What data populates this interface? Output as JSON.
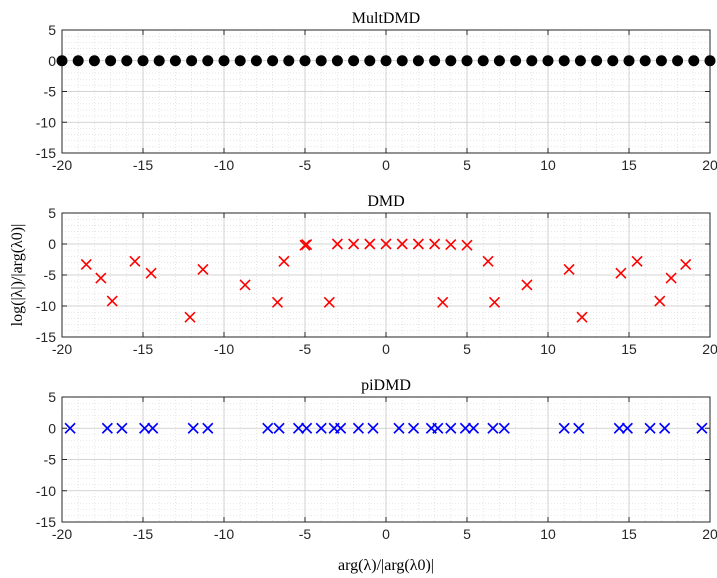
{
  "chart_data": [
    {
      "type": "scatter",
      "title": "MultDMD",
      "xlim": [
        -20,
        20
      ],
      "ylim": [
        -15,
        5
      ],
      "xticks": [
        -20,
        -15,
        -10,
        -5,
        0,
        5,
        10,
        15,
        20
      ],
      "yticks": [
        -15,
        -10,
        -5,
        0,
        5
      ],
      "grid": true,
      "minor_grid": true,
      "marker": "filled-circle",
      "color": "#000000",
      "x": [
        -20,
        -19,
        -18,
        -17,
        -16,
        -15,
        -14,
        -13,
        -12,
        -11,
        -10,
        -9,
        -8,
        -7,
        -6,
        -5,
        -4,
        -3,
        -2,
        -1,
        0,
        1,
        2,
        3,
        4,
        5,
        6,
        7,
        8,
        9,
        10,
        11,
        12,
        13,
        14,
        15,
        16,
        17,
        18,
        19,
        20
      ],
      "y": [
        0,
        0,
        0,
        0,
        0,
        0,
        0,
        0,
        0,
        0,
        0,
        0,
        0,
        0,
        0,
        0,
        0,
        0,
        0,
        0,
        0,
        0,
        0,
        0,
        0,
        0,
        0,
        0,
        0,
        0,
        0,
        0,
        0,
        0,
        0,
        0,
        0,
        0,
        0,
        0,
        0
      ]
    },
    {
      "type": "scatter",
      "title": "DMD",
      "ylabel": "log(|λ|)/|arg(λ0)|",
      "xlim": [
        -20,
        20
      ],
      "ylim": [
        -15,
        5
      ],
      "xticks": [
        -20,
        -15,
        -10,
        -5,
        0,
        5,
        10,
        15,
        20
      ],
      "yticks": [
        -15,
        -10,
        -5,
        0,
        5
      ],
      "grid": true,
      "minor_grid": true,
      "marker": "x",
      "color": "#ff0000",
      "x": [
        -18.5,
        -17.6,
        -16.9,
        -15.5,
        -14.5,
        -12.1,
        -11.3,
        -8.7,
        -6.7,
        -6.3,
        -5,
        -4.9,
        -3.5,
        -3,
        -2,
        -1,
        0,
        1,
        2,
        3,
        3.5,
        4,
        5,
        6.3,
        6.7,
        8.7,
        11.3,
        12.1,
        14.5,
        15.5,
        16.9,
        17.6,
        18.5
      ],
      "y": [
        -3.3,
        -5.5,
        -9.2,
        -2.8,
        -4.7,
        -11.8,
        -4.1,
        -6.6,
        -9.4,
        -2.8,
        -0.2,
        -0.1,
        -9.4,
        0,
        0,
        0,
        0,
        0,
        0,
        0,
        -9.4,
        -0.1,
        -0.2,
        -2.8,
        -9.4,
        -6.6,
        -4.1,
        -11.8,
        -4.7,
        -2.8,
        -9.2,
        -5.5,
        -3.3
      ]
    },
    {
      "type": "scatter",
      "title": "piDMD",
      "xlabel": "arg(λ)/|arg(λ0)|",
      "xlim": [
        -20,
        20
      ],
      "ylim": [
        -15,
        5
      ],
      "xticks": [
        -20,
        -15,
        -10,
        -5,
        0,
        5,
        10,
        15,
        20
      ],
      "yticks": [
        -15,
        -10,
        -5,
        0,
        5
      ],
      "grid": true,
      "minor_grid": true,
      "marker": "x",
      "color": "#0000ff",
      "x": [
        -19.5,
        -17.2,
        -16.3,
        -14.9,
        -14.4,
        -11.9,
        -11.0,
        -7.3,
        -6.6,
        -5.4,
        -4.9,
        -4.0,
        -3.2,
        -2.8,
        -1.7,
        -0.8,
        0.8,
        1.7,
        2.8,
        3.2,
        4.0,
        4.9,
        5.4,
        6.6,
        7.3,
        11.0,
        11.9,
        14.4,
        14.9,
        16.3,
        17.2,
        19.5
      ],
      "y": [
        0,
        0,
        0,
        0,
        0,
        0,
        0,
        0,
        0,
        0,
        0,
        0,
        0,
        0,
        0,
        0,
        0,
        0,
        0,
        0,
        0,
        0,
        0,
        0,
        0,
        0,
        0,
        0,
        0,
        0,
        0,
        0
      ]
    }
  ]
}
